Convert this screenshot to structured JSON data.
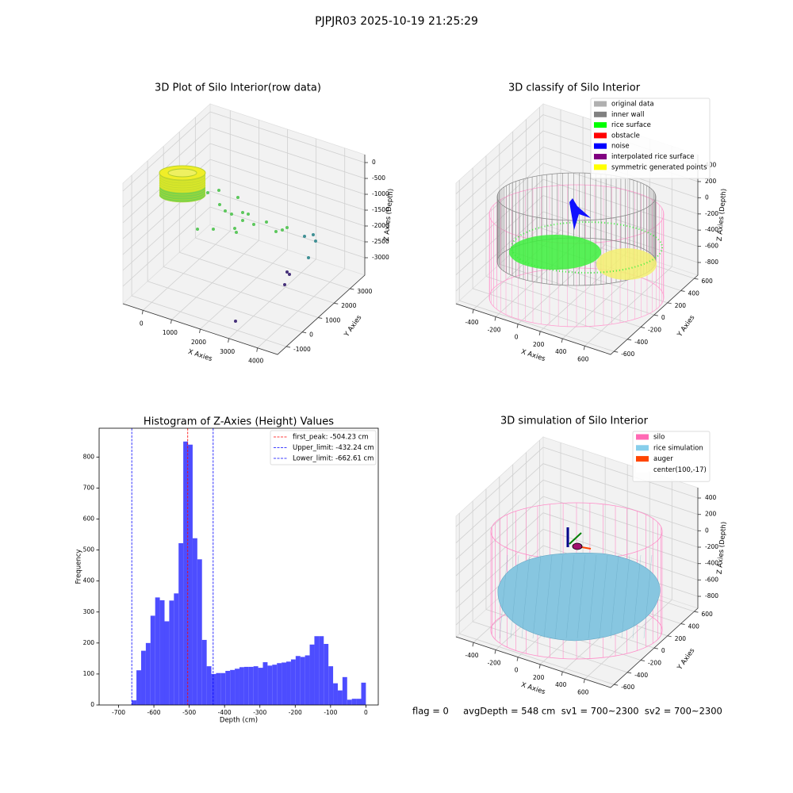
{
  "title": "PJPJR03 2025-10-19 21:25:29",
  "footer": "flag = 0     avgDepth = 548 cm  sv1 = 700~2300  sv2 = 700~2300",
  "chart_data": [
    {
      "type": "scatter3d",
      "title": "3D Plot of Silo Interior(row data)",
      "xlabel": "X Axies",
      "ylabel": "Y Axies",
      "zlabel": "Z Axies (Depth)",
      "xlim": [
        -700,
        4700
      ],
      "ylim": [
        -1550,
        3930
      ],
      "zlim": [
        -3550,
        250
      ],
      "xticks": [
        0,
        1000,
        2000,
        3000,
        4000
      ],
      "yticks": [
        -1000,
        0,
        1000,
        2000,
        3000
      ],
      "zticks": [
        0,
        -500,
        -1000,
        -1500,
        -2000,
        -2500,
        -3000
      ]
    },
    {
      "type": "scatter3d",
      "title": "3D classify of Silo Interior",
      "xlabel": "X Axies",
      "ylabel": "Y Axies",
      "zlabel": "Z Axies (Depth)",
      "xlim": [
        -557,
        833
      ],
      "ylim": [
        -650,
        654
      ],
      "zlim": [
        -957,
        533
      ],
      "xticks": [
        -400,
        -200,
        0,
        200,
        400,
        600
      ],
      "yticks": [
        -600,
        -400,
        -200,
        0,
        200,
        400,
        600
      ],
      "zticks": [
        400,
        200,
        0,
        -200,
        -400,
        -600,
        -800
      ],
      "legend": [
        {
          "name": "original data",
          "color": "#b0b0b0"
        },
        {
          "name": "inner wall",
          "color": "#808080"
        },
        {
          "name": "rice surface",
          "color": "#00ff00"
        },
        {
          "name": "obstacle",
          "color": "#ff0000"
        },
        {
          "name": "noise",
          "color": "#0000ff"
        },
        {
          "name": "interpolated rice surface",
          "color": "#800080"
        },
        {
          "name": "symmetric generated points",
          "color": "#ffff00"
        }
      ]
    },
    {
      "type": "histogram",
      "title": "Histogram of Z-Axies (Height) Values",
      "xlabel": "Depth (cm)",
      "ylabel": "Frequency",
      "color": "#4d4dff",
      "xlim": [
        -755,
        35
      ],
      "ylim": [
        0,
        893
      ],
      "xticks": [
        -700,
        -600,
        -500,
        -400,
        -300,
        -200,
        -100,
        0
      ],
      "yticks": [
        0,
        100,
        200,
        300,
        400,
        500,
        600,
        700,
        800
      ],
      "bins": [
        -662.61,
        -649.36,
        -636.11,
        -622.85,
        -609.6,
        -596.35,
        -583.1,
        -569.85,
        -556.59,
        -543.34,
        -530.09,
        -516.84,
        -503.59,
        -490.33,
        -477.08,
        -463.83,
        -450.58,
        -437.33,
        -424.07,
        -410.82,
        -397.57,
        -384.32,
        -371.07,
        -357.81,
        -344.56,
        -331.31,
        -318.06,
        -304.8,
        -291.55,
        -278.3,
        -265.05,
        -251.8,
        -238.54,
        -225.29,
        -212.04,
        -198.79,
        -185.54,
        -172.28,
        -159.03,
        -145.78,
        -132.53,
        -119.28,
        -106.02,
        -92.77,
        -79.52,
        -66.27,
        -53.02,
        -39.76,
        -26.51,
        -13.26,
        0
      ],
      "values": [
        15,
        112,
        175,
        200,
        288,
        347,
        338,
        270,
        337,
        360,
        522,
        850,
        840,
        538,
        470,
        210,
        125,
        100,
        103,
        103,
        110,
        113,
        117,
        122,
        123,
        123,
        125,
        120,
        138,
        127,
        130,
        135,
        137,
        140,
        147,
        158,
        155,
        160,
        195,
        222,
        222,
        197,
        125,
        70,
        47,
        90,
        17,
        20,
        20,
        72
      ],
      "vlines": [
        {
          "value": -504.23,
          "label": "first_peak: -504.23 cm",
          "color": "#ff0000"
        },
        {
          "value": -432.24,
          "label": "Upper_limit: -432.24 cm",
          "color": "#0000ff"
        },
        {
          "value": -662.61,
          "label": "Lower_limit: -662.61 cm",
          "color": "#0000ff"
        }
      ]
    },
    {
      "type": "surface3d",
      "title": "3D simulation of Silo Interior",
      "xlabel": "X Axies",
      "ylabel": "Y Axies",
      "zlabel": "Z Axies (Depth)",
      "xlim": [
        -557,
        833
      ],
      "ylim": [
        -650,
        654
      ],
      "zlim": [
        -945,
        526
      ],
      "xticks": [
        -400,
        -200,
        0,
        200,
        400,
        600
      ],
      "yticks": [
        -600,
        -400,
        -200,
        0,
        200,
        400,
        600
      ],
      "zticks": [
        400,
        200,
        0,
        -200,
        -400,
        -600,
        -800
      ],
      "legend": [
        {
          "name": "silo",
          "color": "#ff69b4"
        },
        {
          "name": "rice simulation",
          "color": "#87ceeb"
        },
        {
          "name": "auger",
          "color": "#ff4500"
        },
        {
          "name": "center(100,-17)",
          "color": "#ffffff"
        }
      ]
    }
  ]
}
